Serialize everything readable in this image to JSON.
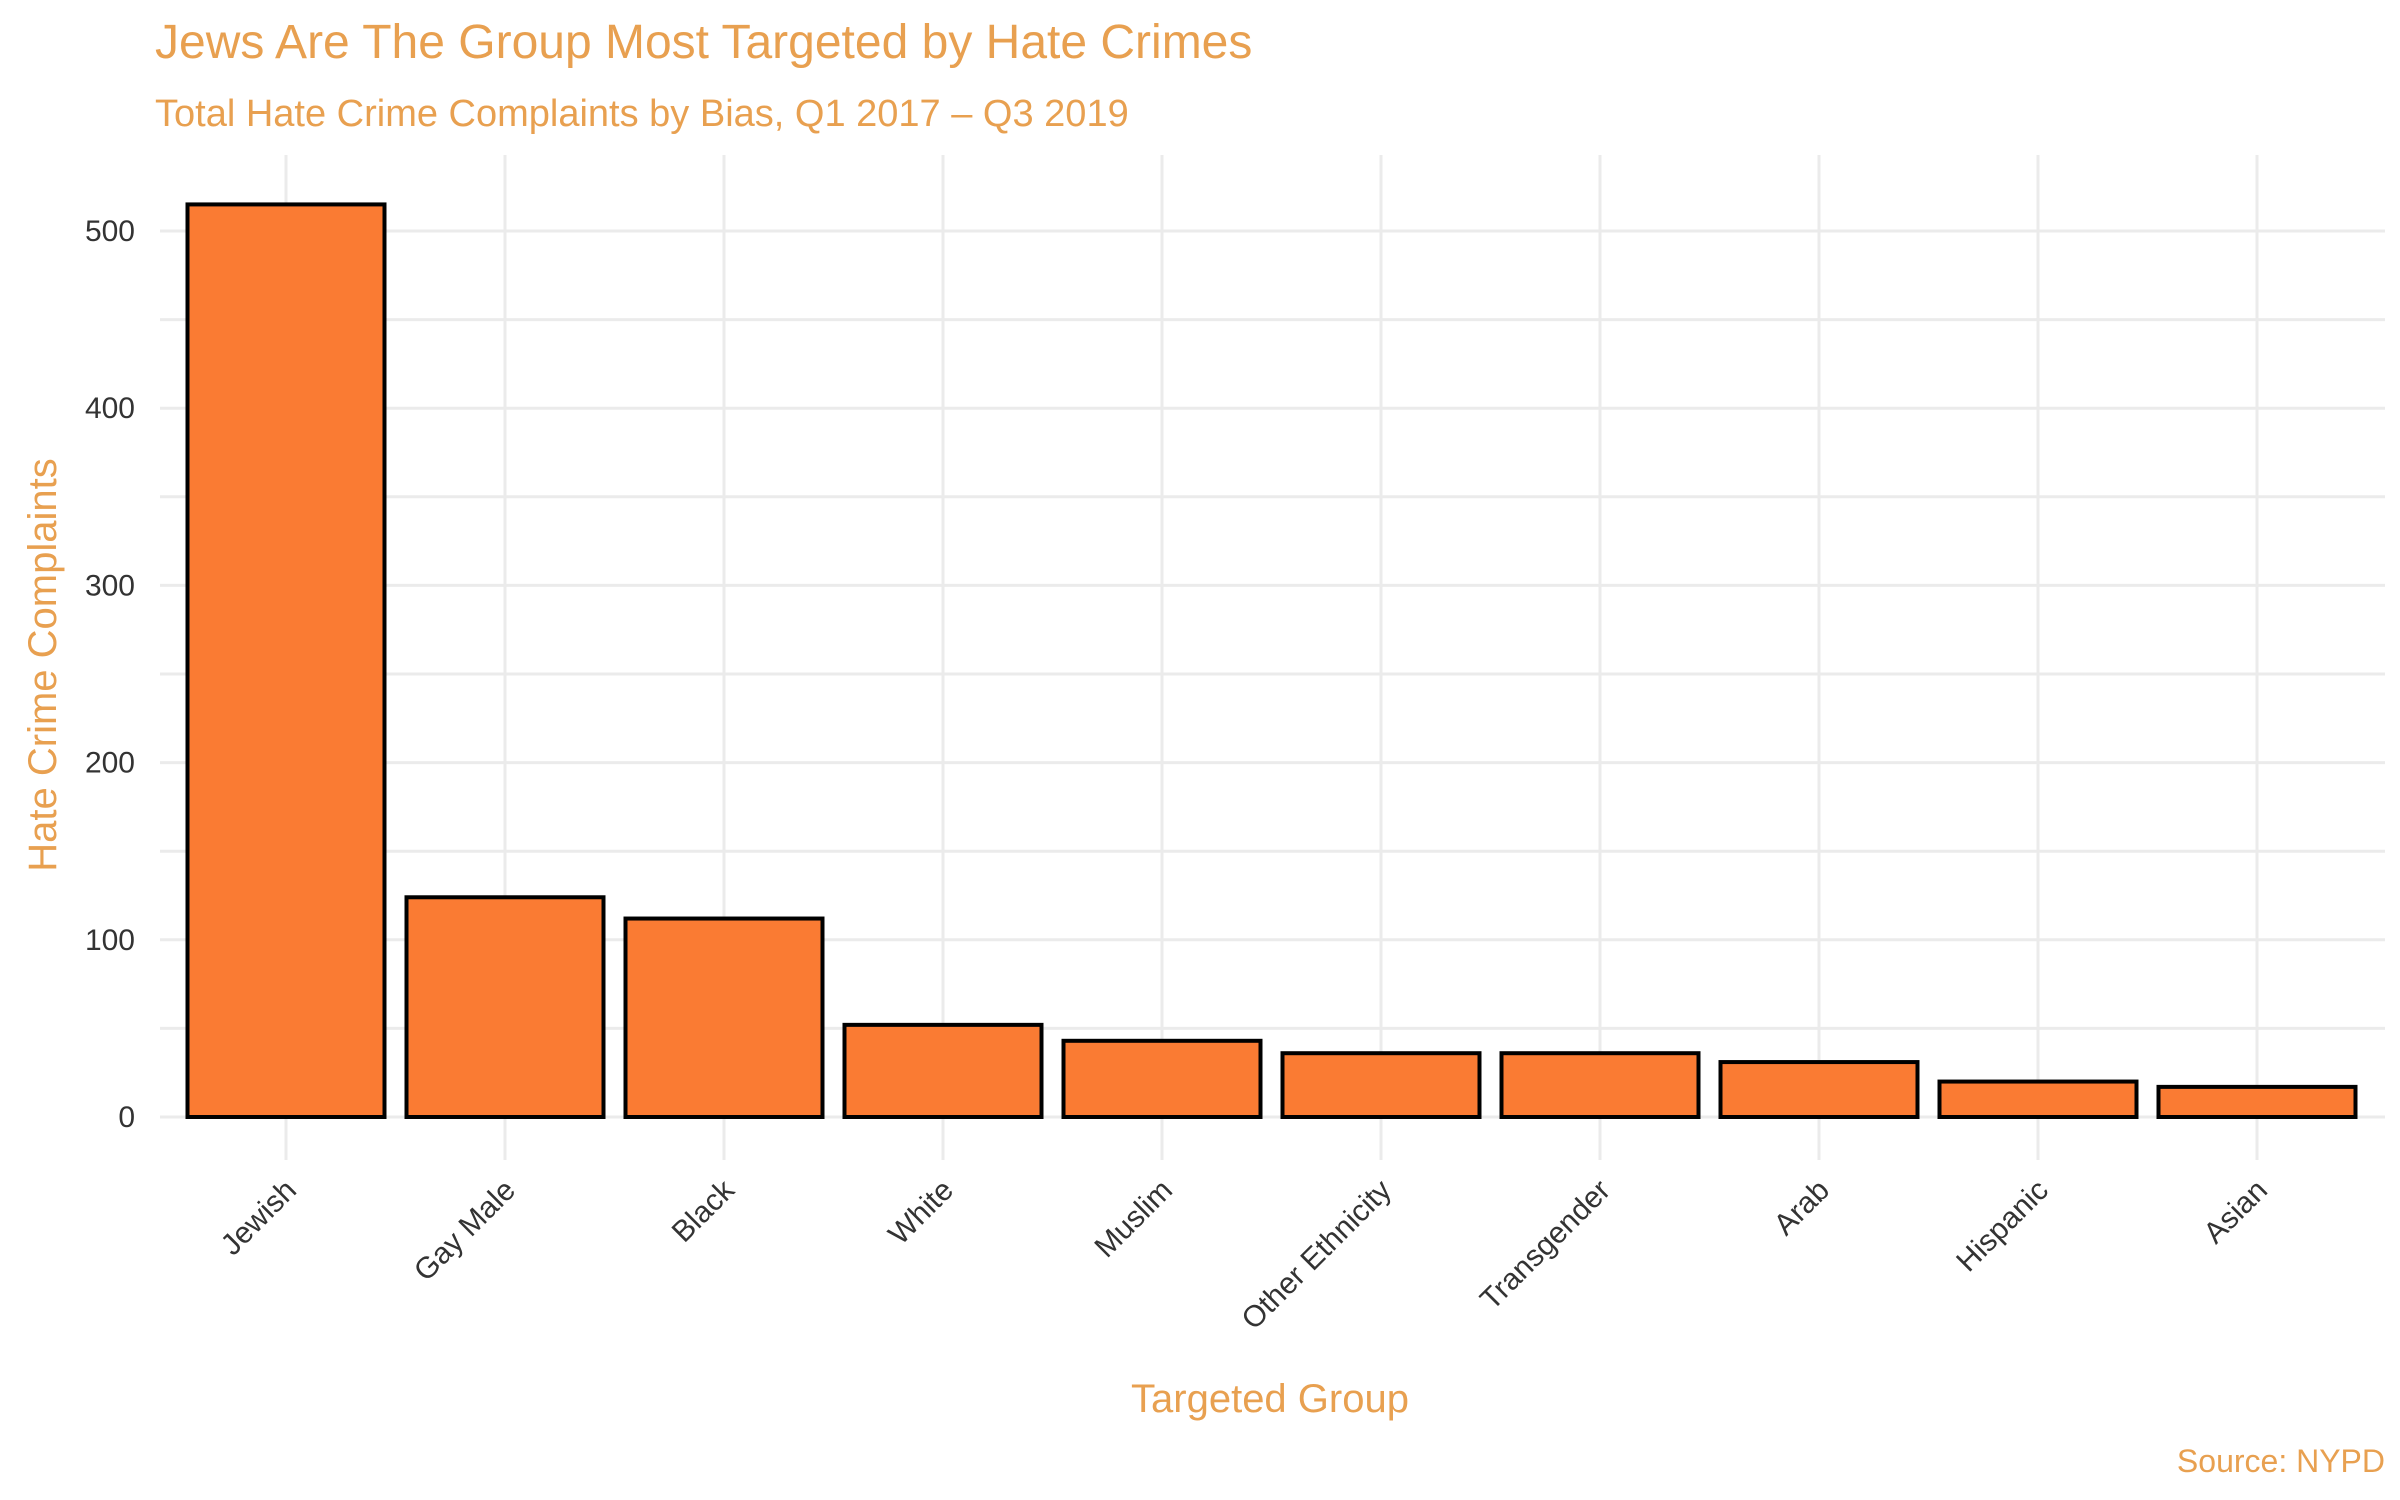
{
  "chart_data": {
    "type": "bar",
    "title": "Jews Are The Group Most Targeted by Hate Crimes",
    "subtitle": "Total Hate Crime Complaints by Bias, Q1 2017 – Q3 2019",
    "xlabel": "Targeted Group",
    "ylabel": "Hate Crime Complaints",
    "caption": "Source: NYPD",
    "categories": [
      "Jewish",
      "Gay Male",
      "Black",
      "White",
      "Muslim",
      "Other Ethnicity",
      "Transgender",
      "Arab",
      "Hispanic",
      "Asian"
    ],
    "values": [
      515,
      124,
      112,
      52,
      43,
      36,
      36,
      31,
      20,
      17
    ],
    "ylim": [
      0,
      540
    ],
    "yticks": [
      0,
      100,
      200,
      300,
      400,
      500
    ],
    "grid": true,
    "legend": "none",
    "colors": {
      "bar_fill": "#FA7B33",
      "bar_stroke": "#000000",
      "text_accent": "#E8A050"
    }
  }
}
